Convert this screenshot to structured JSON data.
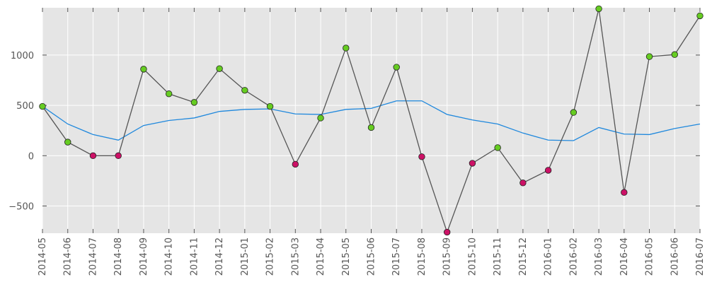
{
  "chart_data": {
    "type": "line",
    "title": "",
    "xlabel": "",
    "ylabel": "",
    "x": [
      "2014-05",
      "2014-06",
      "2014-07",
      "2014-08",
      "2014-09",
      "2014-10",
      "2014-11",
      "2014-12",
      "2015-01",
      "2015-02",
      "2015-03",
      "2015-04",
      "2015-05",
      "2015-06",
      "2015-07",
      "2015-08",
      "2015-09",
      "2015-10",
      "2015-11",
      "2015-12",
      "2016-01",
      "2016-02",
      "2016-03",
      "2016-04",
      "2016-05",
      "2016-06",
      "2016-07"
    ],
    "ylim": [
      -770,
      1470
    ],
    "yticks": [
      -500,
      0,
      500,
      1000
    ],
    "ytick_labels": [
      "−500",
      "0",
      "500",
      "1000"
    ],
    "grid": true,
    "series": [
      {
        "style": "line-with-markers",
        "color": "#555555",
        "values": [
          490,
          135,
          0,
          0,
          860,
          615,
          530,
          865,
          650,
          490,
          -85,
          375,
          1070,
          280,
          880,
          -10,
          -760,
          -75,
          80,
          -270,
          -145,
          430,
          1460,
          -365,
          985,
          1005,
          1390
        ],
        "marker_positive_color": "#66cc22",
        "marker_negative_color": "#cc1166"
      },
      {
        "style": "line",
        "color": "#1f88dd",
        "values": [
          490,
          315,
          210,
          155,
          300,
          350,
          375,
          440,
          460,
          465,
          415,
          410,
          460,
          470,
          545,
          545,
          410,
          355,
          315,
          225,
          155,
          150,
          280,
          215,
          210,
          270,
          315
        ]
      }
    ]
  }
}
